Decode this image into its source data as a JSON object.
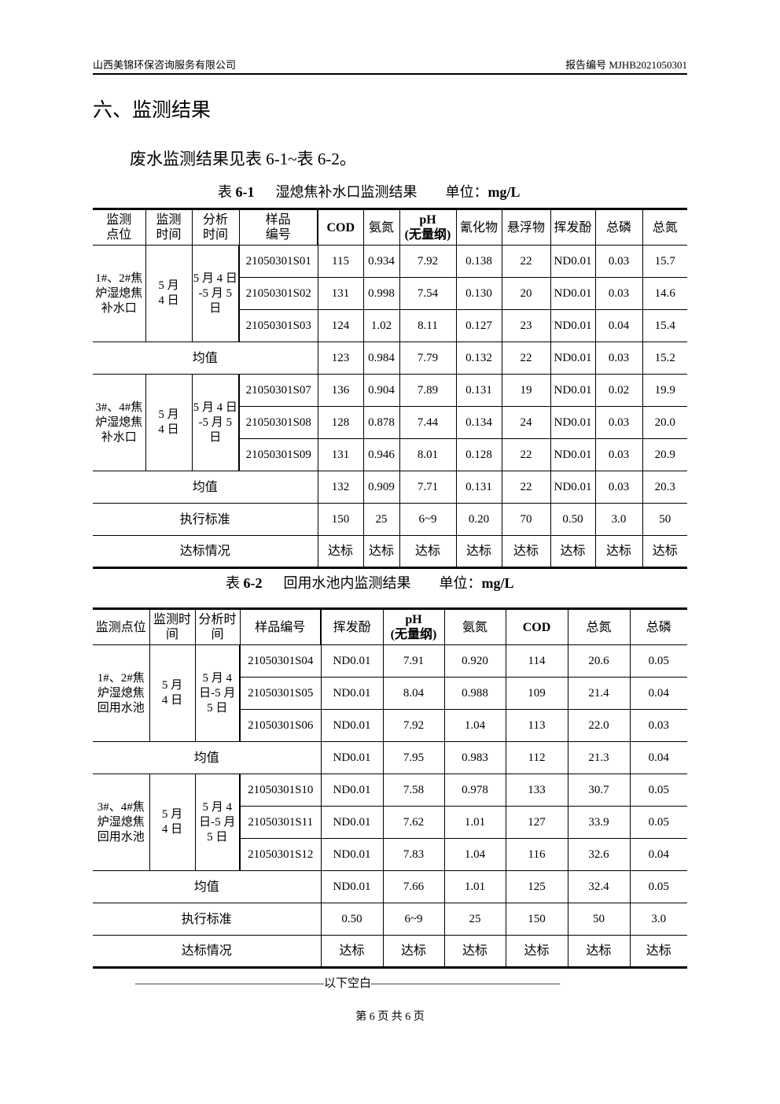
{
  "header": {
    "company": "山西美锦环保咨询服务有限公司",
    "report_no": "报告编号 MJHB2021050301"
  },
  "section_title": "六、监测结果",
  "intro": "废水监测结果见表 6-1~表 6-2。",
  "table1": {
    "caption_prefix": "表 ",
    "caption_no": "6-1",
    "caption_title": "湿熄焦补水口监测结果",
    "unit_label": "单位：",
    "unit": "mg/L",
    "headers": [
      "监测\n点位",
      "监测\n时间",
      "分析\n时间",
      "样品\n编号",
      "COD",
      "氨氮",
      "pH\n(无量纲)",
      "氰化物",
      "悬浮物",
      "挥发酚",
      "总磷",
      "总氮"
    ],
    "groups": [
      {
        "site": "1#、2#焦炉湿熄焦补水口",
        "date": "5 月\n4 日",
        "analysis": "5 月 4 日\n-5 月 5\n日",
        "rows": [
          [
            "21050301S01",
            "115",
            "0.934",
            "7.92",
            "0.138",
            "22",
            "ND0.01",
            "0.03",
            "15.7"
          ],
          [
            "21050301S02",
            "131",
            "0.998",
            "7.54",
            "0.130",
            "20",
            "ND0.01",
            "0.03",
            "14.6"
          ],
          [
            "21050301S03",
            "124",
            "1.02",
            "8.11",
            "0.127",
            "23",
            "ND0.01",
            "0.04",
            "15.4"
          ]
        ],
        "mean_label": "均值",
        "mean": [
          "123",
          "0.984",
          "7.79",
          "0.132",
          "22",
          "ND0.01",
          "0.03",
          "15.2"
        ]
      },
      {
        "site": "3#、4#焦炉湿熄焦补水口",
        "date": "5 月\n4 日",
        "analysis": "5 月 4 日\n-5 月 5\n日",
        "rows": [
          [
            "21050301S07",
            "136",
            "0.904",
            "7.89",
            "0.131",
            "19",
            "ND0.01",
            "0.02",
            "19.9"
          ],
          [
            "21050301S08",
            "128",
            "0.878",
            "7.44",
            "0.134",
            "24",
            "ND0.01",
            "0.03",
            "20.0"
          ],
          [
            "21050301S09",
            "131",
            "0.946",
            "8.01",
            "0.128",
            "22",
            "ND0.01",
            "0.03",
            "20.9"
          ]
        ],
        "mean_label": "均值",
        "mean": [
          "132",
          "0.909",
          "7.71",
          "0.131",
          "22",
          "ND0.01",
          "0.03",
          "20.3"
        ]
      }
    ],
    "standard_label": "执行标准",
    "standard": [
      "150",
      "25",
      "6~9",
      "0.20",
      "70",
      "0.50",
      "3.0",
      "50"
    ],
    "compliance_label": "达标情况",
    "compliance": [
      "达标",
      "达标",
      "达标",
      "达标",
      "达标",
      "达标",
      "达标",
      "达标"
    ]
  },
  "table2": {
    "caption_prefix": "表 ",
    "caption_no": "6-2",
    "caption_title": "回用水池内监测结果",
    "unit_label": "单位：",
    "unit": "mg/L",
    "headers": [
      "监测点位",
      "监测时\n间",
      "分析时\n间",
      "样品编号",
      "挥发酚",
      "pH\n(无量纲)",
      "氨氮",
      "COD",
      "总氮",
      "总磷"
    ],
    "groups": [
      {
        "site": "1#、2#焦炉湿熄焦回用水池",
        "date": "5 月\n4 日",
        "analysis": "5 月 4\n日-5 月\n5 日",
        "rows": [
          [
            "21050301S04",
            "ND0.01",
            "7.91",
            "0.920",
            "114",
            "20.6",
            "0.05"
          ],
          [
            "21050301S05",
            "ND0.01",
            "8.04",
            "0.988",
            "109",
            "21.4",
            "0.04"
          ],
          [
            "21050301S06",
            "ND0.01",
            "7.92",
            "1.04",
            "113",
            "22.0",
            "0.03"
          ]
        ],
        "mean_label": "均值",
        "mean": [
          "ND0.01",
          "7.95",
          "0.983",
          "112",
          "21.3",
          "0.04"
        ]
      },
      {
        "site": "3#、4#焦炉湿熄焦回用水池",
        "date": "5 月\n4 日",
        "analysis": "5 月 4\n日-5 月\n5 日",
        "rows": [
          [
            "21050301S10",
            "ND0.01",
            "7.58",
            "0.978",
            "133",
            "30.7",
            "0.05"
          ],
          [
            "21050301S11",
            "ND0.01",
            "7.62",
            "1.01",
            "127",
            "33.9",
            "0.05"
          ],
          [
            "21050301S12",
            "ND0.01",
            "7.83",
            "1.04",
            "116",
            "32.6",
            "0.04"
          ]
        ],
        "mean_label": "均值",
        "mean": [
          "ND0.01",
          "7.66",
          "1.01",
          "125",
          "32.4",
          "0.05"
        ]
      }
    ],
    "standard_label": "执行标准",
    "standard": [
      "0.50",
      "6~9",
      "25",
      "150",
      "50",
      "3.0"
    ],
    "compliance_label": "达标情况",
    "compliance": [
      "达标",
      "达标",
      "达标",
      "达标",
      "达标",
      "达标"
    ]
  },
  "end_note": "————————————————以下空白————————————————",
  "footer": "第 6 页 共 6 页"
}
